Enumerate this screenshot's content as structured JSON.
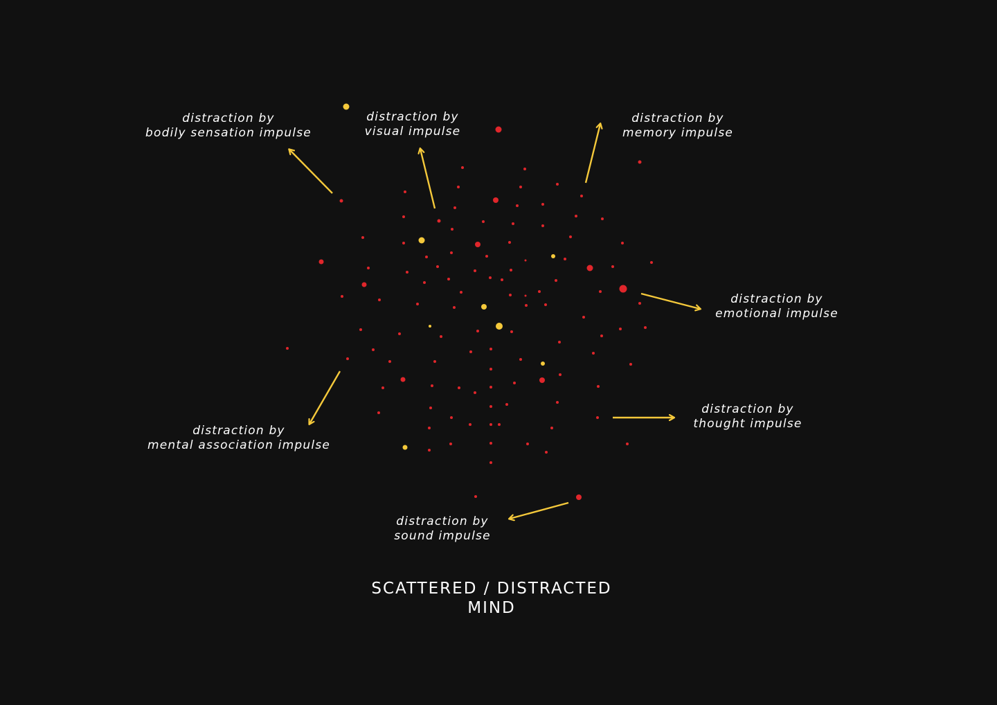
{
  "colors": {
    "background": "#111111",
    "red_dot": "#e0262b",
    "yellow_dot": "#f5c93b",
    "arrow": "#f5c93b",
    "text": "#ffffff"
  },
  "title": {
    "line1": "SCATTERED / DISTRACTED",
    "line2": "MIND"
  },
  "labels": {
    "bodily": {
      "line1": "distraction by",
      "line2": "bodily sensation impulse"
    },
    "visual": {
      "line1": "distraction by",
      "line2": "visual impulse"
    },
    "memory": {
      "line1": "distraction by",
      "line2": "memory impulse"
    },
    "emotional": {
      "line1": "distraction by",
      "line2": "emotional impulse"
    },
    "thought": {
      "line1": "distraction by",
      "line2": "thought impulse"
    },
    "mental": {
      "line1": "distraction by",
      "line2": "mental association impulse"
    },
    "sound": {
      "line1": "distraction by",
      "line2": "sound impulse"
    }
  }
}
